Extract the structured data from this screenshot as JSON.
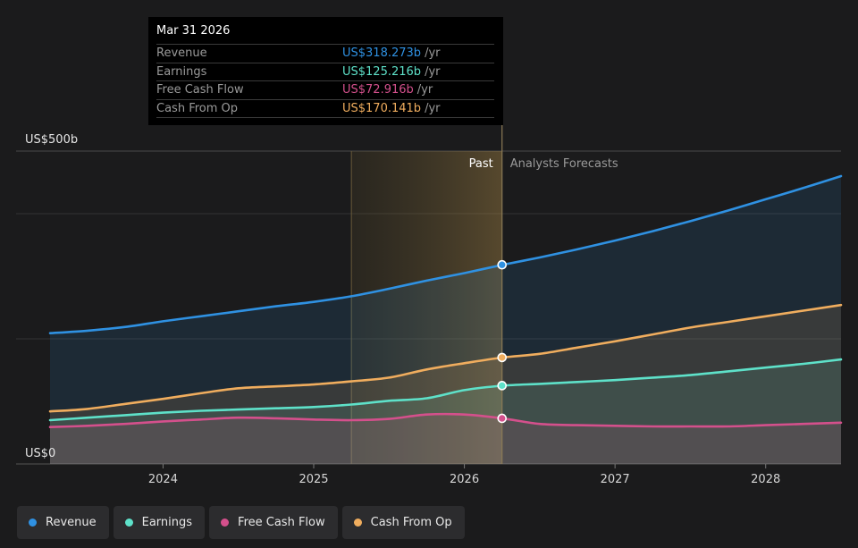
{
  "tooltip": {
    "date": "Mar 31 2026",
    "rows": [
      {
        "name": "Revenue",
        "value": "US$318.273b",
        "unit": "/yr",
        "color": "#2f91e2"
      },
      {
        "name": "Earnings",
        "value": "US$125.216b",
        "unit": "/yr",
        "color": "#5ee1c9"
      },
      {
        "name": "Free Cash Flow",
        "value": "US$72.916b",
        "unit": "/yr",
        "color": "#d4508c"
      },
      {
        "name": "Cash From Op",
        "value": "US$170.141b",
        "unit": "/yr",
        "color": "#f0ad5e"
      }
    ]
  },
  "legend": [
    {
      "label": "Revenue",
      "color": "#2f91e2"
    },
    {
      "label": "Earnings",
      "color": "#5ee1c9"
    },
    {
      "label": "Free Cash Flow",
      "color": "#d4508c"
    },
    {
      "label": "Cash From Op",
      "color": "#f0ad5e"
    }
  ],
  "chart_data": {
    "type": "area",
    "title": "",
    "y_labels": {
      "top": "US$500b",
      "bottom": "US$0"
    },
    "ylim": [
      0,
      500
    ],
    "xlim": [
      2023.25,
      2028.5
    ],
    "x_ticks": [
      {
        "value": 2024,
        "label": "2024"
      },
      {
        "value": 2025,
        "label": "2025"
      },
      {
        "value": 2026,
        "label": "2026"
      },
      {
        "value": 2027,
        "label": "2027"
      },
      {
        "value": 2028,
        "label": "2028"
      }
    ],
    "regions": {
      "past_label": "Past",
      "forecast_label": "Analysts Forecasts",
      "past_start": 2025.25,
      "divider": 2026.25
    },
    "grid": true,
    "legend_position": "bottom-left",
    "series": [
      {
        "name": "Revenue",
        "color": "#2f91e2",
        "x": [
          2023.25,
          2023.5,
          2023.75,
          2024.0,
          2024.25,
          2024.5,
          2024.75,
          2025.0,
          2025.25,
          2025.5,
          2025.75,
          2026.0,
          2026.25,
          2026.5,
          2026.75,
          2027.0,
          2027.25,
          2027.5,
          2027.75,
          2028.0,
          2028.25,
          2028.5
        ],
        "y": [
          209,
          213,
          219,
          228,
          236,
          244,
          252,
          259,
          268,
          280,
          293,
          305,
          318,
          330,
          343,
          357,
          372,
          388,
          405,
          423,
          441,
          460
        ]
      },
      {
        "name": "Earnings",
        "color": "#5ee1c9",
        "x": [
          2023.25,
          2023.5,
          2023.75,
          2024.0,
          2024.25,
          2024.5,
          2024.75,
          2025.0,
          2025.25,
          2025.5,
          2025.75,
          2026.0,
          2026.25,
          2026.5,
          2026.75,
          2027.0,
          2027.25,
          2027.5,
          2027.75,
          2028.0,
          2028.25,
          2028.5
        ],
        "y": [
          70,
          74,
          78,
          82,
          85,
          87,
          89,
          91,
          95,
          101,
          105,
          118,
          125,
          128,
          131,
          134,
          138,
          142,
          148,
          154,
          160,
          167
        ]
      },
      {
        "name": "Free Cash Flow",
        "color": "#d4508c",
        "x": [
          2023.25,
          2023.5,
          2023.75,
          2024.0,
          2024.25,
          2024.5,
          2024.75,
          2025.0,
          2025.25,
          2025.5,
          2025.75,
          2026.0,
          2026.25,
          2026.5,
          2026.75,
          2027.0,
          2027.25,
          2027.5,
          2027.75,
          2028.0,
          2028.25,
          2028.5
        ],
        "y": [
          59,
          61,
          64,
          68,
          71,
          74,
          73,
          71,
          70,
          72,
          79,
          79,
          73,
          64,
          62,
          61,
          60,
          60,
          60,
          62,
          64,
          66
        ]
      },
      {
        "name": "Cash From Op",
        "color": "#f0ad5e",
        "x": [
          2023.25,
          2023.5,
          2023.75,
          2024.0,
          2024.25,
          2024.5,
          2024.75,
          2025.0,
          2025.25,
          2025.5,
          2025.75,
          2026.0,
          2026.25,
          2026.5,
          2026.75,
          2027.0,
          2027.25,
          2027.5,
          2027.75,
          2028.0,
          2028.25,
          2028.5
        ],
        "y": [
          84,
          88,
          96,
          104,
          113,
          121,
          124,
          127,
          132,
          138,
          151,
          161,
          170,
          176,
          186,
          196,
          207,
          218,
          227,
          236,
          245,
          254
        ]
      }
    ],
    "highlight_points": [
      {
        "series": "Revenue",
        "x": 2026.25,
        "y": 318.273
      },
      {
        "series": "Earnings",
        "x": 2026.25,
        "y": 125.216
      },
      {
        "series": "Free Cash Flow",
        "x": 2026.25,
        "y": 72.916
      },
      {
        "series": "Cash From Op",
        "x": 2026.25,
        "y": 170.141
      }
    ]
  }
}
